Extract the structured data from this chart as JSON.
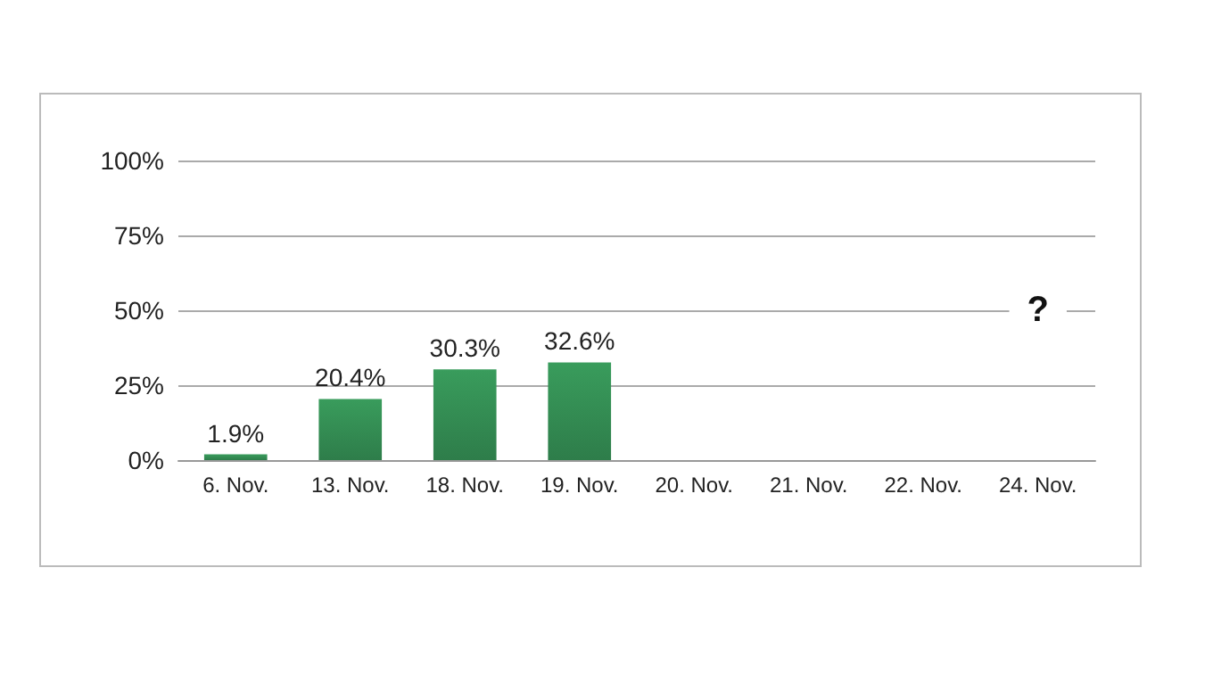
{
  "chart_data": {
    "type": "bar",
    "categories": [
      "6. Nov.",
      "13. Nov.",
      "18. Nov.",
      "19. Nov.",
      "20. Nov.",
      "21. Nov.",
      "22. Nov.",
      "24. Nov."
    ],
    "values": [
      1.9,
      20.4,
      30.3,
      32.6,
      null,
      null,
      null,
      null
    ],
    "value_labels": [
      "1.9%",
      "20.4%",
      "30.3%",
      "32.6%",
      null,
      null,
      null,
      null
    ],
    "color": "#2e7d4a",
    "ylim": [
      0,
      100
    ],
    "yticks": [
      {
        "value": 0,
        "label": "0%"
      },
      {
        "value": 25,
        "label": "25%"
      },
      {
        "value": 50,
        "label": "50%"
      },
      {
        "value": 75,
        "label": "75%"
      },
      {
        "value": 100,
        "label": "100%"
      }
    ],
    "grid": "y",
    "annotations": [
      {
        "text": "?",
        "x": "24. Nov.",
        "y": 50
      }
    ]
  }
}
